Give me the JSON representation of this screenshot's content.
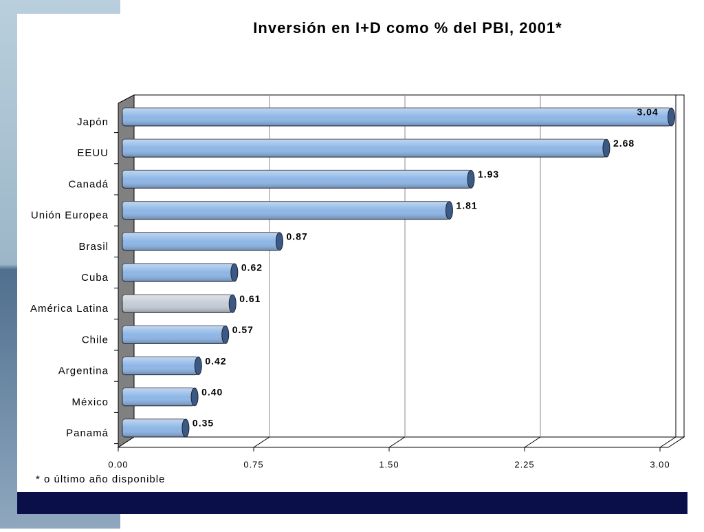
{
  "chart_data": {
    "type": "bar",
    "orientation": "horizontal",
    "title": "Inversión en I+D como % del PBI, 2001*",
    "footnote": "* o último año disponible",
    "categories": [
      "Japón",
      "EEUU",
      "Canadá",
      "Unión Europea",
      "Brasil",
      "Cuba",
      "América Latina",
      "Chile",
      "Argentina",
      "México",
      "Panamá"
    ],
    "values": [
      3.04,
      2.68,
      1.93,
      1.81,
      0.87,
      0.62,
      0.61,
      0.57,
      0.42,
      0.4,
      0.35
    ],
    "value_labels": [
      "3.04",
      "2.68",
      "1.93",
      "1.81",
      "0.87",
      "0.62",
      "0.61",
      "0.57",
      "0.42",
      "0.40",
      "0.35"
    ],
    "colors": [
      "#8db6e6",
      "#8db6e6",
      "#8db6e6",
      "#8db6e6",
      "#8db6e6",
      "#8db6e6",
      "#c4ccd6",
      "#8db6e6",
      "#8db6e6",
      "#8db6e6",
      "#8db6e6"
    ],
    "xlim": [
      0,
      3
    ],
    "xticks": [
      {
        "value": 0,
        "label": "0.00"
      },
      {
        "value": 0.75,
        "label": "0.75"
      },
      {
        "value": 1.5,
        "label": "1.50"
      },
      {
        "value": 2.25,
        "label": "2.25"
      },
      {
        "value": 3,
        "label": "3.00"
      }
    ],
    "grid": true
  }
}
